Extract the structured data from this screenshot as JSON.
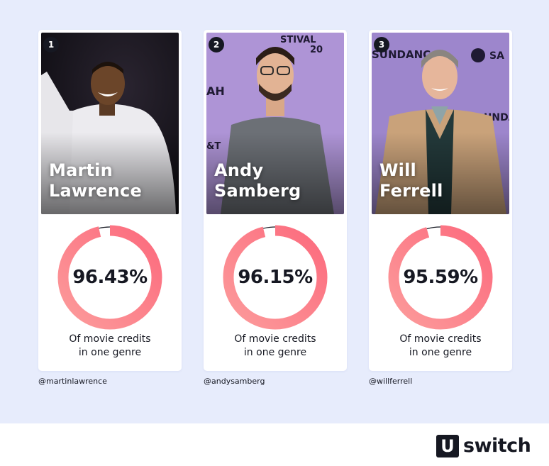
{
  "chart_data": {
    "type": "pie",
    "cards": [
      {
        "rank": "1",
        "name_line1": "Martin",
        "name_line2": "Lawrence",
        "value": 96.43,
        "label": "96.43%",
        "caption_line1": "Of movie credits",
        "caption_line2": "in one genre",
        "handle": "@martinlawrence"
      },
      {
        "rank": "2",
        "name_line1": "Andy",
        "name_line2": "Samberg",
        "value": 96.15,
        "label": "96.15%",
        "caption_line1": "Of movie credits",
        "caption_line2": "in one genre",
        "handle": "@andysamberg"
      },
      {
        "rank": "3",
        "name_line1": "Will",
        "name_line2": "Ferrell",
        "value": 95.59,
        "label": "95.59%",
        "caption_line1": "Of movie credits",
        "caption_line2": "in one genre",
        "handle": "@willferrell"
      }
    ]
  },
  "colors": {
    "ring_start": "#fc9b9b",
    "ring_end": "#fc6a7d",
    "remainder": "#161822",
    "background": "#e7ecfc"
  },
  "brand": {
    "logo_letter": "U",
    "logo_text": "switch"
  }
}
